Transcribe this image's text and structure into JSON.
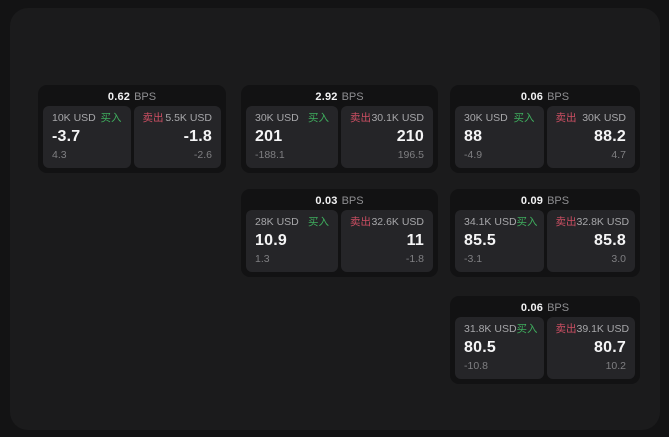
{
  "labels": {
    "bps_suffix": "BPS",
    "buy": "买入",
    "sell": "卖出"
  },
  "colors": {
    "buy_green": "#3fae5e",
    "sell_red": "#cd4f63",
    "board_bg": "#1b1b1c",
    "card_bg": "#121213",
    "tile_bg": "#252528"
  },
  "cards": [
    {
      "bps": "0.62",
      "buy": {
        "amount": "10K USD",
        "price": "-3.7",
        "delta": "4.3"
      },
      "sell": {
        "amount": "5.5K USD",
        "price": "-1.8",
        "delta": "-2.6"
      }
    },
    {
      "bps": "2.92",
      "buy": {
        "amount": "30K USD",
        "price": "201",
        "delta": "-188.1"
      },
      "sell": {
        "amount": "30.1K USD",
        "price": "210",
        "delta": "196.5"
      }
    },
    {
      "bps": "0.06",
      "buy": {
        "amount": "30K USD",
        "price": "88",
        "delta": "-4.9"
      },
      "sell": {
        "amount": "30K USD",
        "price": "88.2",
        "delta": "4.7"
      }
    },
    {
      "bps": "0.03",
      "buy": {
        "amount": "28K USD",
        "price": "10.9",
        "delta": "1.3"
      },
      "sell": {
        "amount": "32.6K USD",
        "price": "11",
        "delta": "-1.8"
      }
    },
    {
      "bps": "0.09",
      "buy": {
        "amount": "34.1K USD",
        "price": "85.5",
        "delta": "-3.1"
      },
      "sell": {
        "amount": "32.8K USD",
        "price": "85.8",
        "delta": "3.0"
      }
    },
    {
      "bps": "0.06",
      "buy": {
        "amount": "31.8K USD",
        "price": "80.5",
        "delta": "-10.8"
      },
      "sell": {
        "amount": "39.1K USD",
        "price": "80.7",
        "delta": "10.2"
      }
    }
  ]
}
